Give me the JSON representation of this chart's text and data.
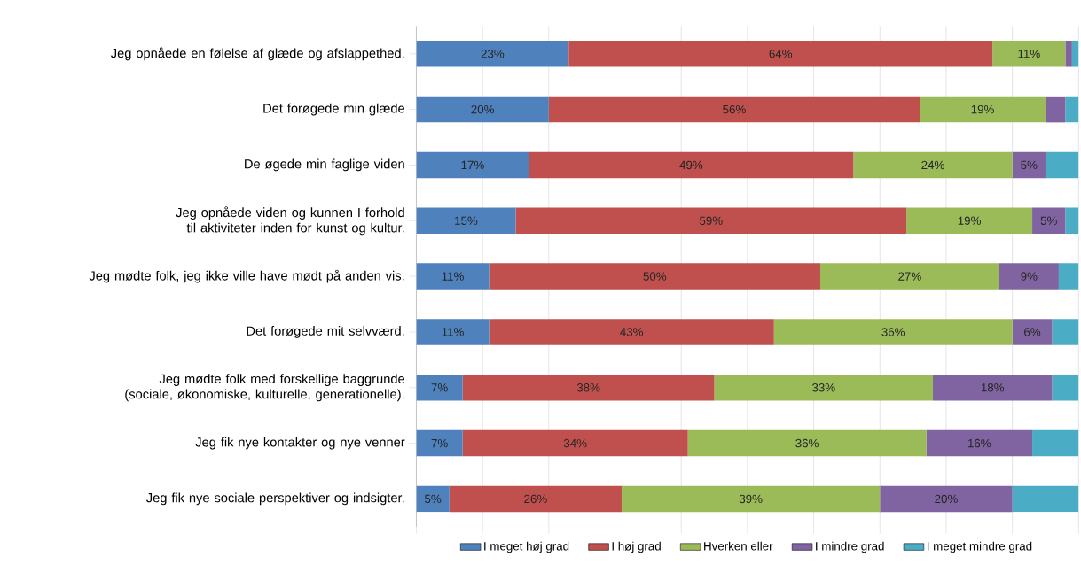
{
  "chart_data": {
    "type": "bar",
    "orientation": "horizontal",
    "stacked": true,
    "categories": [
      "Jeg opnåede en følelse af glæde og afslappethed.",
      "Det forøgede min glæde",
      "De øgede min faglige viden",
      "Jeg opnåede viden og kunnen I forhold til aktiviteter inden for kunst og kultur.",
      "Jeg mødte folk, jeg ikke ville have mødt på anden vis.",
      "Det forøgede mit selvværd.",
      "Jeg mødte folk med forskellige baggrunde (sociale, økonomiske, kulturelle, generationelle).",
      "Jeg fik nye kontakter og nye venner",
      "Jeg fik nye sociale perspektiver og indsigter."
    ],
    "series": [
      {
        "name": "I meget høj grad",
        "color": "#4f81bd",
        "values": [
          23,
          20,
          17,
          15,
          11,
          11,
          7,
          7,
          5
        ],
        "value_labels": [
          "23%",
          "20%",
          "17%",
          "15%",
          "11%",
          "11%",
          "7%",
          "7%",
          "5%"
        ]
      },
      {
        "name": "I høj grad",
        "color": "#c0504d",
        "values": [
          64,
          56,
          49,
          59,
          50,
          43,
          38,
          34,
          26
        ],
        "value_labels": [
          "64%",
          "56%",
          "49%",
          "59%",
          "50%",
          "43%",
          "38%",
          "34%",
          "26%"
        ]
      },
      {
        "name": "Hverken eller",
        "color": "#9bbb59",
        "values": [
          11,
          19,
          24,
          19,
          27,
          36,
          33,
          36,
          39
        ],
        "value_labels": [
          "11%",
          "19%",
          "24%",
          "19%",
          "27%",
          "36%",
          "33%",
          "36%",
          "39%"
        ]
      },
      {
        "name": "I mindre grad",
        "color": "#8064a2",
        "values": [
          1,
          3,
          5,
          5,
          9,
          6,
          18,
          16,
          20
        ],
        "value_labels": [
          null,
          null,
          "5%",
          "5%",
          "9%",
          "6%",
          "18%",
          "16%",
          "20%"
        ]
      },
      {
        "name": "I meget mindre grad",
        "color": "#4bacc6",
        "values": [
          1,
          2,
          5,
          2,
          3,
          4,
          4,
          7,
          10
        ]
      }
    ],
    "xlim": [
      0,
      100
    ],
    "xticks": [
      {
        "value": 0,
        "label": null
      },
      {
        "value": 10,
        "label": null
      },
      {
        "value": 20,
        "label": null
      },
      {
        "value": 30,
        "label": null
      },
      {
        "value": 40,
        "label": null
      },
      {
        "value": 50,
        "label": null
      },
      {
        "value": 60,
        "label": null
      },
      {
        "value": 70,
        "label": null
      },
      {
        "value": 80,
        "label": null
      },
      {
        "value": 90,
        "label": null
      },
      {
        "value": 100,
        "label": null
      }
    ],
    "grid": "x",
    "legend": "bottom",
    "tick_labels": "y"
  }
}
